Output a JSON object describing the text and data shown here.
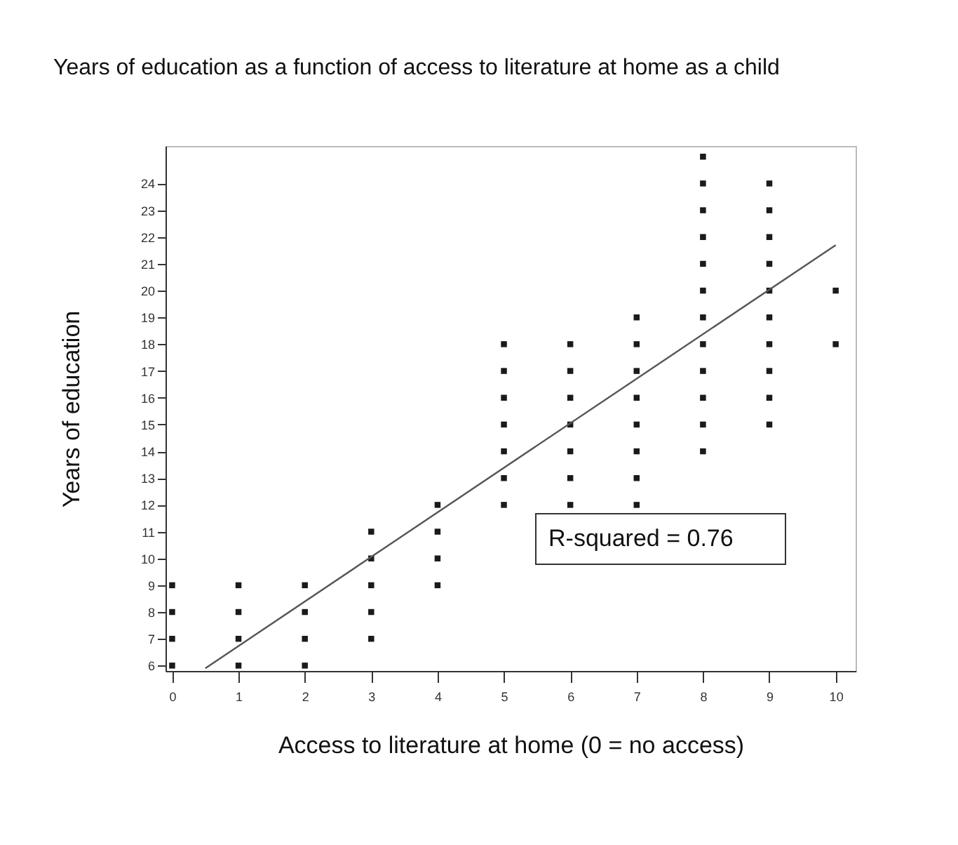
{
  "chart_data": {
    "type": "scatter",
    "title": "Years of education as a function of access to literature at home as a child",
    "xlabel": "Access to literature at home (0 = no access)",
    "ylabel": "Years of education",
    "annotations": [
      "R-squared = 0.76"
    ],
    "xlim": [
      -0.1,
      10.3
    ],
    "ylim": [
      5.8,
      25.4
    ],
    "xticks": [
      0,
      1,
      2,
      3,
      4,
      5,
      6,
      7,
      8,
      9,
      10
    ],
    "yticks": [
      6,
      7,
      8,
      9,
      10,
      11,
      12,
      13,
      14,
      15,
      16,
      17,
      18,
      19,
      20,
      21,
      22,
      23,
      24
    ],
    "series": [
      {
        "color": "#1a1a1a",
        "marker": "square",
        "x": [
          0,
          0,
          0,
          0,
          1,
          1,
          1,
          1,
          2,
          2,
          2,
          2,
          3,
          3,
          3,
          3,
          3,
          4,
          4,
          4,
          4,
          5,
          5,
          5,
          5,
          5,
          5,
          5,
          6,
          6,
          6,
          6,
          6,
          6,
          6,
          7,
          7,
          7,
          7,
          7,
          7,
          7,
          7,
          8,
          8,
          8,
          8,
          8,
          8,
          8,
          8,
          8,
          8,
          8,
          8,
          9,
          9,
          9,
          9,
          9,
          9,
          9,
          9,
          9,
          9,
          10,
          10
        ],
        "values": [
          6,
          7,
          8,
          9,
          6,
          7,
          8,
          9,
          6,
          7,
          8,
          9,
          7,
          8,
          9,
          10,
          11,
          9,
          10,
          11,
          12,
          12,
          13,
          14,
          15,
          16,
          17,
          18,
          12,
          13,
          14,
          15,
          16,
          17,
          18,
          12,
          13,
          14,
          15,
          16,
          17,
          18,
          19,
          14,
          15,
          16,
          17,
          18,
          19,
          20,
          21,
          22,
          23,
          24,
          25,
          15,
          16,
          17,
          18,
          19,
          20,
          21,
          22,
          23,
          24,
          18,
          20
        ]
      },
      {
        "type": "line",
        "marker": "none",
        "color": "#555555",
        "x": [
          0.5,
          10
        ],
        "values": [
          5.9,
          21.7
        ]
      }
    ]
  }
}
